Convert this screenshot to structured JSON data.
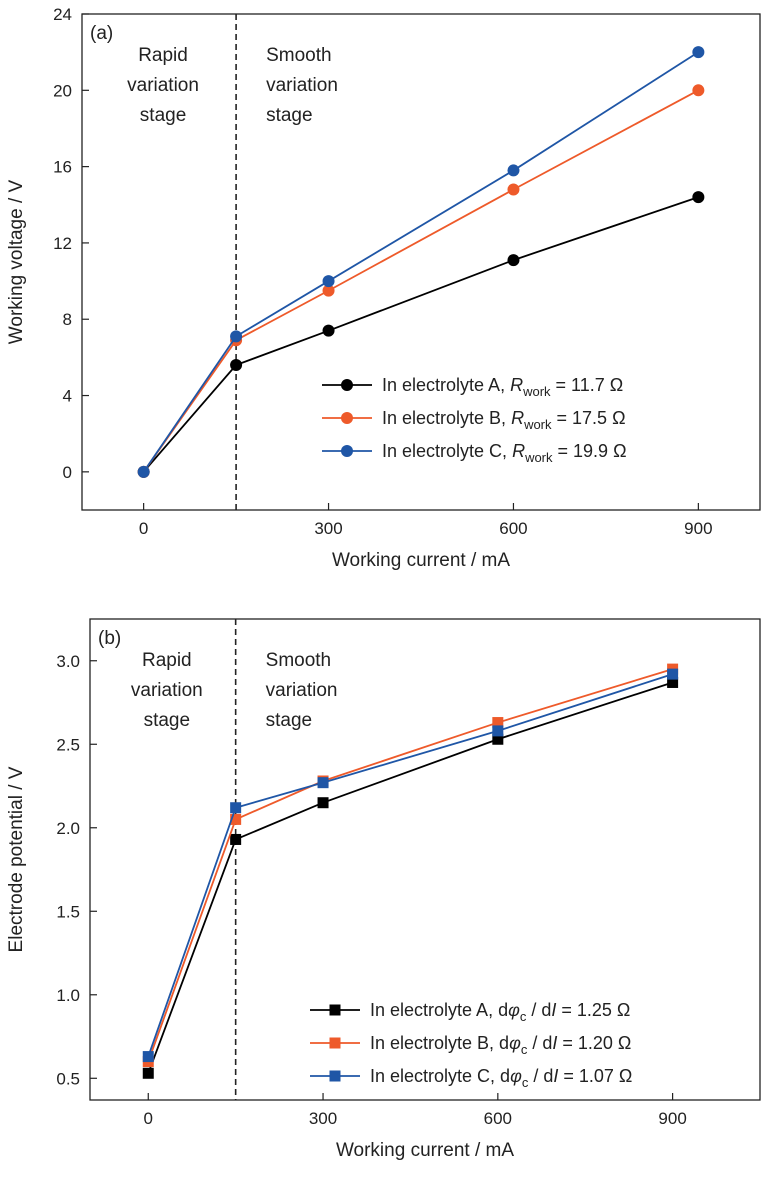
{
  "chart_data": [
    {
      "type": "line",
      "panel_label": "(a)",
      "xlabel": "Working current / mA",
      "ylabel": "Working voltage / V",
      "xlim": [
        -100,
        1000
      ],
      "ylim": [
        -2,
        24
      ],
      "xticks": [
        0,
        300,
        600,
        900
      ],
      "yticks": [
        0,
        4,
        8,
        12,
        16,
        20,
        24
      ],
      "marker": "circle",
      "divider_x": 150,
      "stage_labels": {
        "left": [
          "Rapid",
          "variation",
          "stage"
        ],
        "right": [
          "Smooth",
          "variation",
          "stage"
        ]
      },
      "legend_position": "bottom-right",
      "series": [
        {
          "legend_prefix": "In electrolyte A, ",
          "legend_symbol": "R",
          "legend_sub": "work",
          "legend_value": " = 11.7 Ω",
          "color": "#000000",
          "x": [
            0,
            150,
            300,
            600,
            900
          ],
          "y": [
            0,
            5.6,
            7.4,
            11.1,
            14.4
          ]
        },
        {
          "legend_prefix": "In electrolyte B, ",
          "legend_symbol": "R",
          "legend_sub": "work",
          "legend_value": " = 17.5  Ω",
          "color": "#ee5a2a",
          "x": [
            0,
            150,
            300,
            600,
            900
          ],
          "y": [
            0,
            6.9,
            9.5,
            14.8,
            20.0
          ]
        },
        {
          "legend_prefix": "In electrolyte C, ",
          "legend_symbol": "R",
          "legend_sub": "work",
          "legend_value": " = 19.9  Ω",
          "color": "#1f56a6",
          "x": [
            0,
            150,
            300,
            600,
            900
          ],
          "y": [
            0,
            7.1,
            10.0,
            15.8,
            22.0
          ]
        }
      ]
    },
    {
      "type": "line",
      "panel_label": "(b)",
      "xlabel": "Working current / mA",
      "ylabel": "Electrode potential / V",
      "xlim": [
        -100,
        1050
      ],
      "ylim": [
        0.37,
        3.25
      ],
      "xticks": [
        0,
        300,
        600,
        900
      ],
      "yticks": [
        0.5,
        1.0,
        1.5,
        2.0,
        2.5,
        3.0
      ],
      "ytick_format": "1dp",
      "marker": "square",
      "divider_x": 150,
      "stage_labels": {
        "left": [
          "Rapid",
          "variation",
          "stage"
        ],
        "right": [
          "Smooth",
          "variation",
          "stage"
        ]
      },
      "legend_position": "bottom-right",
      "series": [
        {
          "legend_prefix": "In electrolyte A, d",
          "legend_symbol": "φ",
          "legend_sub": "c",
          "legend_mid": " / d",
          "legend_italic2": "I",
          "legend_value": " = 1.25 Ω",
          "color": "#000000",
          "x": [
            0,
            150,
            300,
            600,
            900
          ],
          "y": [
            0.53,
            1.93,
            2.15,
            2.53,
            2.87
          ]
        },
        {
          "legend_prefix": "In electrolyte B, d",
          "legend_symbol": "φ",
          "legend_sub": "c",
          "legend_mid": " / d",
          "legend_italic2": "I",
          "legend_value": " = 1.20 Ω",
          "color": "#ee5a2a",
          "x": [
            0,
            150,
            300,
            600,
            900
          ],
          "y": [
            0.6,
            2.05,
            2.28,
            2.63,
            2.95
          ]
        },
        {
          "legend_prefix": "In electrolyte C, d",
          "legend_symbol": "φ",
          "legend_sub": "c",
          "legend_mid": " / d",
          "legend_italic2": "I",
          "legend_value": " = 1.07 Ω",
          "color": "#1f56a6",
          "x": [
            0,
            150,
            300,
            600,
            900
          ],
          "y": [
            0.63,
            2.12,
            2.27,
            2.58,
            2.92
          ]
        }
      ]
    }
  ]
}
